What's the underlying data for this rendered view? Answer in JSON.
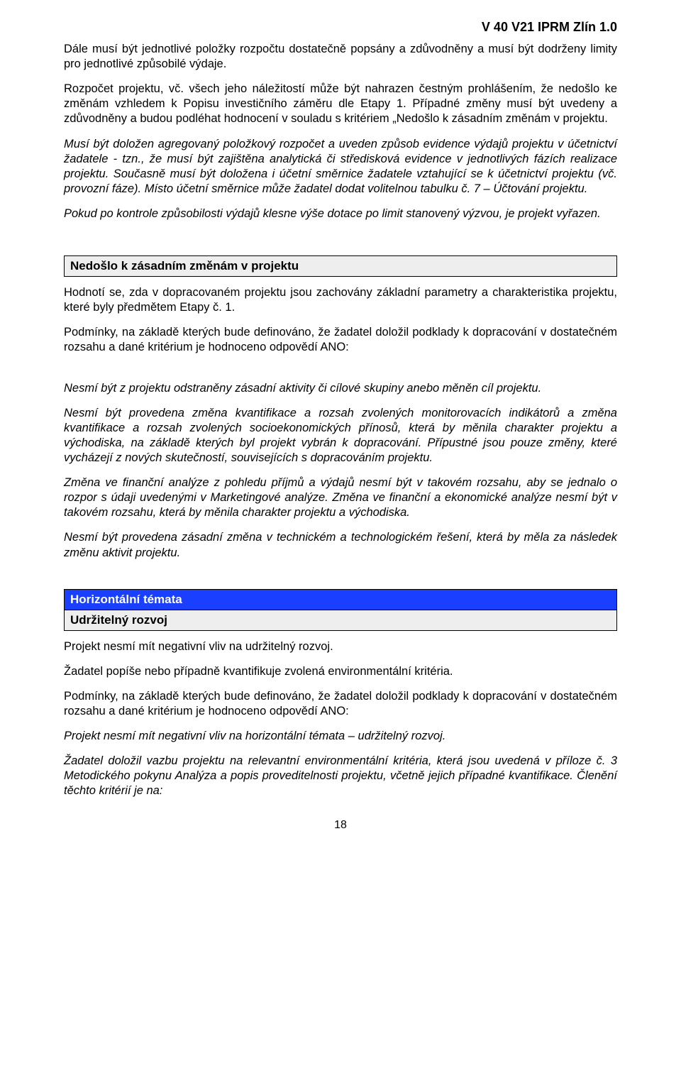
{
  "document": {
    "header_code": "V 40 V21 IPRM Zlín 1.0",
    "page_number": "18",
    "font_family": "Arial",
    "body_fontsize_pt": 12,
    "heading_fontsize_pt": 12,
    "text_color": "#000000",
    "background_color": "#ffffff",
    "box_border_color": "#000000",
    "box_grey_bg": "#eeeeee",
    "box_blue_bg": "#1a3fff",
    "box_blue_text": "#ffffff"
  },
  "paragraphs": {
    "p1": "Dále musí být jednotlivé položky rozpočtu dostatečně popsány a zdůvodněny a musí být dodrženy limity pro jednotlivé způsobilé výdaje.",
    "p2": "Rozpočet projektu, vč. všech jeho náležitostí může být nahrazen čestným prohlášením, že nedošlo ke změnám vzhledem k Popisu investičního záměru dle Etapy 1. Případné změny musí být uvedeny a zdůvodněny a budou podléhat hodnocení v souladu s kritériem „Nedošlo k zásadním změnám v projektu.",
    "p3": "Musí být doložen agregovaný položkový rozpočet a uveden způsob evidence výdajů projektu v účetnictví žadatele - tzn., že musí být zajištěna analytická či středisková evidence v jednotlivých fázích realizace projektu. Současně musí být doložena i účetní směrnice žadatele vztahující se k účetnictví projektu (vč. provozní fáze). Místo účetní směrnice může žadatel dodat volitelnou tabulku č. 7 – Účtování projektu.",
    "p4": "Pokud po kontrole způsobilosti výdajů klesne výše dotace po limit stanovený výzvou, je projekt vyřazen.",
    "s1_heading": "Nedošlo k zásadním změnám v projektu",
    "s1_p1": "Hodnotí se, zda v dopracovaném projektu jsou zachovány základní parametry a charakteristika projektu, které byly předmětem Etapy č. 1.",
    "s1_p2": "Podmínky, na základě kterých bude definováno, že žadatel doložil podklady k dopracování v dostatečném rozsahu a dané kritérium je hodnoceno odpovědí ANO:",
    "s1_p3": "Nesmí být z projektu odstraněny zásadní aktivity či cílové skupiny anebo měněn cíl projektu.",
    "s1_p4": "Nesmí být provedena změna kvantifikace a rozsah zvolených monitorovacích indikátorů a změna kvantifikace a rozsah zvolených socioekonomických přínosů, která by měnila charakter projektu a východiska, na základě kterých byl projekt vybrán k dopracování. Přípustné jsou pouze změny, které vycházejí z nových skutečností, souvisejících s dopracováním projektu.",
    "s1_p5": "Změna ve finanční analýze z pohledu příjmů a výdajů nesmí být v takovém rozsahu, aby se jednalo o rozpor s údaji uvedenými v Marketingové analýze. Změna ve finanční a ekonomické analýze nesmí být v takovém rozsahu, která by měnila charakter projektu a východiska.",
    "s1_p6": "Nesmí být provedena zásadní změna v technickém a technologickém řešení, která by měla za následek změnu aktivit projektu.",
    "s2_heading_blue": "Horizontální témata",
    "s2_heading_grey": "Udržitelný rozvoj",
    "s2_p1": "Projekt nesmí mít negativní vliv na udržitelný rozvoj.",
    "s2_p2": "Žadatel popíše nebo případně kvantifikuje zvolená environmentální kritéria.",
    "s2_p3": "Podmínky, na základě kterých bude definováno, že žadatel doložil podklady k dopracování v dostatečném rozsahu a dané kritérium je hodnoceno odpovědí ANO:",
    "s2_p4": "Projekt nesmí mít negativní vliv na horizontální témata – udržitelný rozvoj.",
    "s2_p5": "Žadatel doložil vazbu projektu na relevantní environmentální kritéria, která jsou uvedená v příloze č. 3 Metodického pokynu Analýza a popis proveditelnosti projektu, včetně jejich případné kvantifikace. Členění těchto kritérií je na:"
  }
}
